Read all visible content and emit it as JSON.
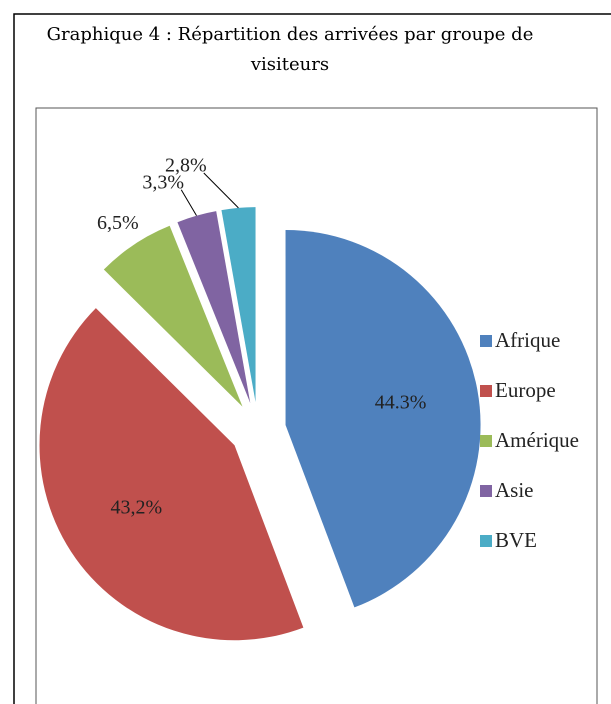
{
  "chart_data": {
    "type": "pie",
    "title": "Graphique 4 : Répartition des arrivées par groupe de visiteurs",
    "categories": [
      "Afrique",
      "Europe",
      "Amérique",
      "Asie",
      "BVE"
    ],
    "values": [
      44.3,
      43.2,
      6.5,
      3.3,
      2.8
    ],
    "value_labels": [
      "44.3%",
      "43,2%",
      "6,5%",
      "3,3%",
      "2,8%"
    ],
    "colors": [
      "#4f81bd",
      "#c0504d",
      "#9bbb59",
      "#8064a2",
      "#4bacc6"
    ],
    "legend": "right"
  }
}
